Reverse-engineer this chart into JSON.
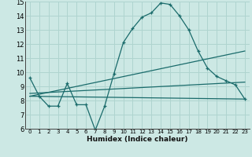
{
  "xlabel": "Humidex (Indice chaleur)",
  "bg_color": "#cce8e4",
  "grid_color": "#afd4cf",
  "line_color": "#1a6b6b",
  "xlim": [
    -0.5,
    23.5
  ],
  "ylim": [
    6,
    15
  ],
  "yticks": [
    6,
    7,
    8,
    9,
    10,
    11,
    12,
    13,
    14,
    15
  ],
  "xticks": [
    0,
    1,
    2,
    3,
    4,
    5,
    6,
    7,
    8,
    9,
    10,
    11,
    12,
    13,
    14,
    15,
    16,
    17,
    18,
    19,
    20,
    21,
    22,
    23
  ],
  "main_x": [
    0,
    1,
    2,
    3,
    4,
    5,
    6,
    7,
    8,
    9,
    10,
    11,
    12,
    13,
    14,
    15,
    16,
    17,
    18,
    19,
    20,
    21,
    22,
    23
  ],
  "main_y": [
    9.6,
    8.3,
    7.6,
    7.6,
    9.2,
    7.7,
    7.7,
    5.9,
    7.6,
    9.9,
    12.1,
    13.1,
    13.9,
    14.2,
    14.9,
    14.8,
    14.0,
    13.0,
    11.5,
    10.3,
    9.7,
    9.4,
    9.1,
    8.1
  ],
  "trend_lines": [
    {
      "x": [
        0,
        23
      ],
      "y": [
        8.3,
        8.1
      ]
    },
    {
      "x": [
        0,
        23
      ],
      "y": [
        8.5,
        9.3
      ]
    },
    {
      "x": [
        0,
        23
      ],
      "y": [
        8.3,
        11.5
      ]
    }
  ]
}
